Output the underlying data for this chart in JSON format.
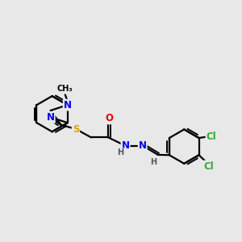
{
  "bg_color": "#e8e8e8",
  "bond_color": "#000000",
  "bond_width": 1.6,
  "atom_colors": {
    "N": "#0000ee",
    "S": "#ccaa00",
    "O": "#ee0000",
    "Cl": "#33aa33",
    "H": "#555555",
    "C": "#000000",
    "CH3": "#000000"
  },
  "font_size": 8.5,
  "fig_size": [
    3.0,
    3.0
  ],
  "dpi": 100
}
